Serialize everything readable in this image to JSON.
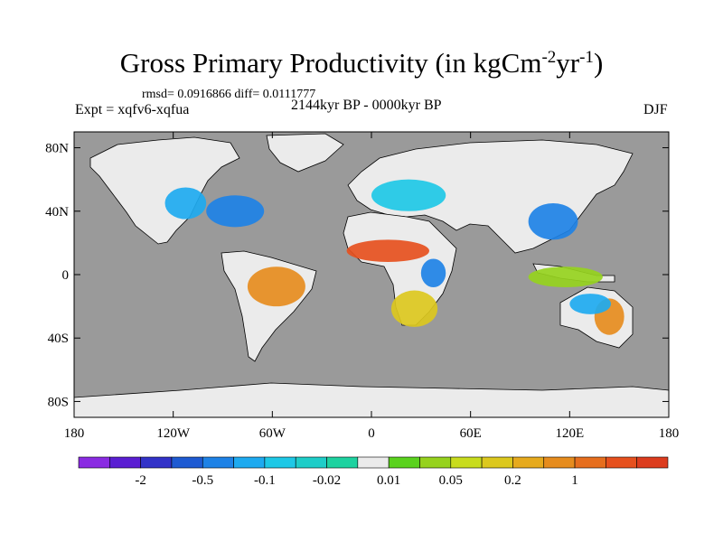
{
  "title": {
    "main": "Gross Primary Productivity (in kgCm",
    "sup1": "-2",
    "mid": "yr",
    "sup2": "-1",
    "end": ")"
  },
  "stats_line": "rmsd= 0.0916866 diff= 0.0111777",
  "left_label": "Expt = xqfv6-xqfua",
  "center_label": "2144kyr BP - 0000kyr BP",
  "right_label": "DJF",
  "colors": {
    "ocean": "#9a9a9a",
    "no_change": "#ebebeb",
    "coast": "#000000"
  },
  "axes": {
    "lat_labels": [
      "80N",
      "40N",
      "0",
      "40S",
      "80S"
    ],
    "lat_values": [
      80,
      40,
      0,
      -40,
      -80
    ],
    "lon_labels": [
      "180",
      "120W",
      "60W",
      "0",
      "60E",
      "120E",
      "180"
    ],
    "lon_values": [
      -180,
      -120,
      -60,
      0,
      60,
      120,
      180
    ],
    "lat_range": [
      -90,
      90
    ],
    "lon_range": [
      -180,
      180
    ]
  },
  "colorbar": {
    "colors": [
      "#8a2be2",
      "#5a1ed2",
      "#3232c8",
      "#1e5ad2",
      "#1e82e6",
      "#1eaaf0",
      "#1ec8e6",
      "#1ecdc8",
      "#1ed2a0",
      "#ebebeb",
      "#5ad21e",
      "#96d21e",
      "#c8dc1e",
      "#dcc81e",
      "#e6aa1e",
      "#e68c1e",
      "#e66e1e",
      "#e6501e",
      "#dc3c1e"
    ],
    "labels": [
      "-2",
      "-0.5",
      "-0.1",
      "-0.02",
      "0.01",
      "0.05",
      "0.2",
      "1"
    ],
    "label_after_box": [
      1,
      3,
      5,
      7,
      9,
      11,
      13,
      15
    ]
  },
  "regions": [
    {
      "name": "north-america-east",
      "value": -0.3,
      "color": "#1e82e6",
      "lon": [
        -100,
        -65
      ],
      "lat": [
        30,
        50
      ]
    },
    {
      "name": "north-america-west",
      "value": -0.08,
      "color": "#1eaaf0",
      "lon": [
        -125,
        -100
      ],
      "lat": [
        35,
        55
      ]
    },
    {
      "name": "amazon",
      "value": 0.3,
      "color": "#e68c1e",
      "lon": [
        -75,
        -40
      ],
      "lat": [
        -20,
        5
      ]
    },
    {
      "name": "sahel",
      "value": 1.2,
      "color": "#e6501e",
      "lon": [
        -15,
        35
      ],
      "lat": [
        8,
        22
      ]
    },
    {
      "name": "east-africa",
      "value": -0.4,
      "color": "#1e82e6",
      "lon": [
        30,
        45
      ],
      "lat": [
        -8,
        10
      ]
    },
    {
      "name": "southern-africa",
      "value": 0.15,
      "color": "#dcc81e",
      "lon": [
        12,
        40
      ],
      "lat": [
        -33,
        -10
      ]
    },
    {
      "name": "europe",
      "value": -0.08,
      "color": "#1ec8e6",
      "lon": [
        0,
        45
      ],
      "lat": [
        40,
        60
      ]
    },
    {
      "name": "east-asia",
      "value": -0.3,
      "color": "#1e82e6",
      "lon": [
        95,
        125
      ],
      "lat": [
        22,
        45
      ]
    },
    {
      "name": "australia-east",
      "value": 0.4,
      "color": "#e68c1e",
      "lon": [
        135,
        153
      ],
      "lat": [
        -38,
        -15
      ]
    },
    {
      "name": "australia-north",
      "value": -0.2,
      "color": "#1eaaf0",
      "lon": [
        120,
        145
      ],
      "lat": [
        -25,
        -12
      ]
    },
    {
      "name": "indonesia",
      "value": 0.07,
      "color": "#96d21e",
      "lon": [
        95,
        140
      ],
      "lat": [
        -8,
        5
      ]
    }
  ]
}
